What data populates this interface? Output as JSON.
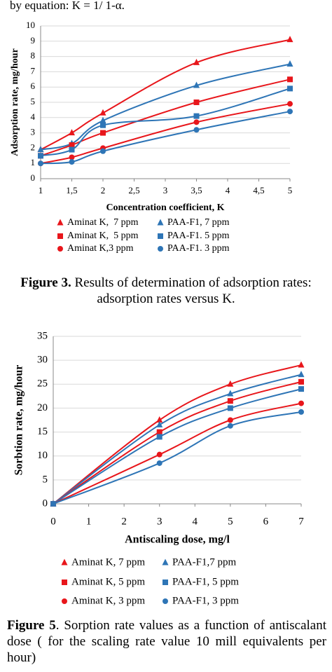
{
  "intro": "by equation: K = 1/ 1-α.",
  "chart_data": [
    {
      "type": "line",
      "ylabel": "Adsorption rate, mg/hour",
      "xlabel": "Concentration coefficient, K",
      "x": [
        1,
        1.5,
        2,
        3.5,
        5
      ],
      "xlim": [
        1,
        5
      ],
      "xticks": [
        1,
        {
          "value": 1.5,
          "label": "1,5"
        },
        2,
        {
          "value": 2.5,
          "label": "2,5"
        },
        3,
        {
          "value": 3.5,
          "label": "3,5"
        },
        4,
        {
          "value": 4.5,
          "label": "4,5"
        },
        5
      ],
      "ylim": [
        0,
        10
      ],
      "yticks": [
        0,
        1,
        2,
        3,
        4,
        5,
        6,
        7,
        8,
        9,
        10
      ],
      "grid": true,
      "series": [
        {
          "name": "Aminat K,  7 ppm",
          "color": "#e8161b",
          "marker": "triangle",
          "values": [
            1.9,
            3.0,
            4.3,
            7.6,
            9.1
          ]
        },
        {
          "name": "PAA-F1, 7 ppm",
          "color": "#2e75b6",
          "marker": "triangle",
          "values": [
            1.9,
            2.3,
            3.8,
            6.1,
            7.5
          ]
        },
        {
          "name": "Aminat K,  5 ppm",
          "color": "#e8161b",
          "marker": "square",
          "values": [
            1.5,
            2.2,
            3.0,
            5.0,
            6.5
          ]
        },
        {
          "name": "PAA-F1. 5 ppm",
          "color": "#2e75b6",
          "marker": "square",
          "values": [
            1.5,
            1.9,
            3.5,
            4.1,
            5.9
          ]
        },
        {
          "name": "Aminat K,3 ppm",
          "color": "#e8161b",
          "marker": "circle",
          "values": [
            1.0,
            1.4,
            2.0,
            3.7,
            4.9
          ]
        },
        {
          "name": "PAA-F1. 3 ppm",
          "color": "#2e75b6",
          "marker": "circle",
          "values": [
            1.0,
            1.1,
            1.8,
            3.2,
            4.4
          ]
        }
      ]
    },
    {
      "type": "line",
      "ylabel": "Sorbtion rate, mg/hour",
      "xlabel": "Antiscaling dose, mg/l",
      "x": [
        0,
        3,
        5,
        7
      ],
      "xlim": [
        0,
        7
      ],
      "xticks": [
        0,
        1,
        2,
        3,
        4,
        5,
        6,
        7
      ],
      "ylim": [
        0,
        35
      ],
      "yticks": [
        0,
        5,
        10,
        15,
        20,
        25,
        30,
        35
      ],
      "grid": true,
      "series": [
        {
          "name": "Aminat K, 7 ppm",
          "color": "#e8161b",
          "marker": "triangle",
          "values": [
            0,
            17.5,
            25,
            29
          ]
        },
        {
          "name": "PAA-F1,7 ppm",
          "color": "#2e75b6",
          "marker": "triangle",
          "values": [
            0,
            16.5,
            23,
            27
          ]
        },
        {
          "name": "Aminat K, 5 ppm",
          "color": "#e8161b",
          "marker": "square",
          "values": [
            0,
            15,
            21.5,
            25.5
          ]
        },
        {
          "name": "PAA-F1, 5 ppm",
          "color": "#2e75b6",
          "marker": "square",
          "values": [
            0,
            14,
            20,
            24
          ]
        },
        {
          "name": "Aminat K, 3 ppm",
          "color": "#e8161b",
          "marker": "circle",
          "values": [
            0,
            10.3,
            17.5,
            21
          ]
        },
        {
          "name": "PAA-F1, 3 ppm",
          "color": "#2e75b6",
          "marker": "circle",
          "values": [
            0,
            8.5,
            16.3,
            19.2
          ]
        }
      ]
    }
  ],
  "captions": [
    {
      "label": "Figure 3.",
      "text": " Results of determination of adsorption rates: adsorption rates versus K."
    },
    {
      "label": "Figure 5",
      "text": ". Sorption rate values as a function of antiscalant dose ( for the scaling rate value 10 mill equivalents per hour)"
    }
  ]
}
